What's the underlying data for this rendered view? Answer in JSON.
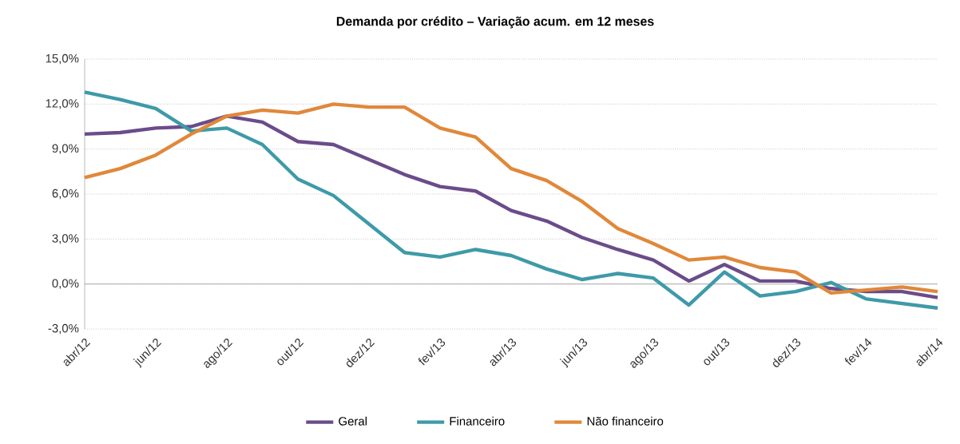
{
  "chart_data": {
    "type": "line",
    "title": "Demanda por crédito – Variação  acum. em 12 meses",
    "categories": [
      "abr/12",
      null,
      "jun/12",
      null,
      "ago/12",
      null,
      "out/12",
      null,
      "dez/12",
      null,
      "fev/13",
      null,
      "abr/13",
      null,
      "jun/13",
      null,
      "ago/13",
      null,
      "out/13",
      null,
      "dez/13",
      null,
      "fev/14",
      null,
      "abr/14"
    ],
    "series": [
      {
        "name": "Geral",
        "color": "#6b4c8a",
        "values": [
          10.0,
          10.1,
          10.4,
          10.5,
          11.2,
          10.8,
          9.5,
          9.3,
          8.3,
          7.3,
          6.5,
          6.2,
          4.9,
          4.2,
          3.1,
          2.3,
          1.6,
          0.2,
          1.3,
          0.2,
          0.2,
          -0.3,
          -0.5,
          -0.5,
          -0.9
        ]
      },
      {
        "name": "Financeiro",
        "color": "#3e9aa8",
        "values": [
          12.8,
          12.3,
          11.7,
          10.2,
          10.4,
          9.3,
          7.0,
          5.9,
          4.0,
          2.1,
          1.8,
          2.3,
          1.9,
          1.0,
          0.3,
          0.7,
          0.4,
          -1.4,
          0.8,
          -0.8,
          -0.5,
          0.1,
          -1.0,
          -1.3,
          -1.6
        ]
      },
      {
        "name": "Não financeiro",
        "color": "#e0883a",
        "values": [
          7.1,
          7.7,
          8.6,
          10.0,
          11.2,
          11.6,
          11.4,
          12.0,
          11.8,
          11.8,
          10.4,
          9.8,
          7.7,
          6.9,
          5.5,
          3.7,
          2.7,
          1.6,
          1.8,
          1.1,
          0.8,
          -0.6,
          -0.4,
          -0.2,
          -0.5
        ]
      }
    ],
    "ylim": [
      -3,
      15
    ],
    "yticks": [
      {
        "value": -3,
        "label": "-3,0%"
      },
      {
        "value": 0,
        "label": "0,0%"
      },
      {
        "value": 3,
        "label": "3,0%"
      },
      {
        "value": 6,
        "label": "6,0%"
      },
      {
        "value": 9,
        "label": "9,0%"
      },
      {
        "value": 12,
        "label": "12,0%"
      },
      {
        "value": 15,
        "label": "15,0%"
      }
    ],
    "grid": "y",
    "legend": "bottom",
    "marker": "none",
    "line_style": "solid"
  }
}
